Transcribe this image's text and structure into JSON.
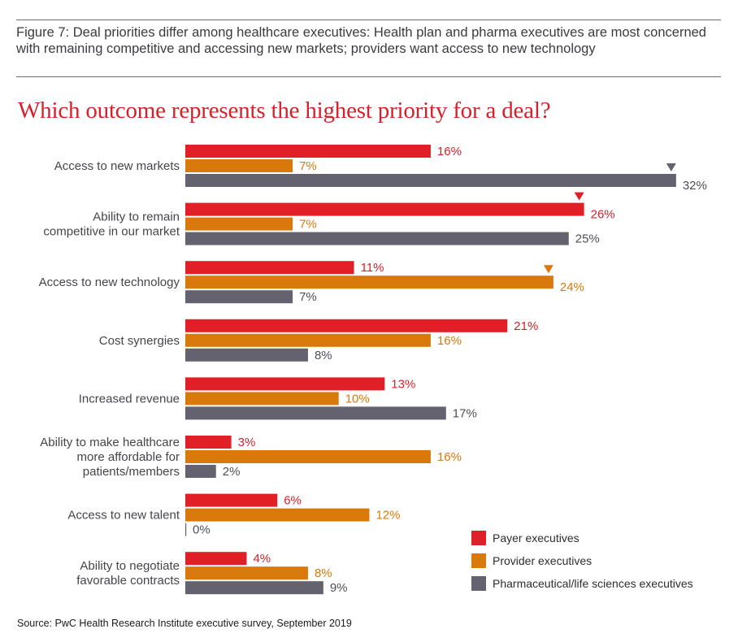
{
  "figure": {
    "caption": "Figure 7: Deal priorities differ among healthcare executives: Health plan and pharma executives are most concerned with remaining competitive and accessing new markets; providers want access to new technology",
    "source": "Source: PwC Health Research Institute executive survey, September 2019"
  },
  "colors": {
    "payer": "#e01f26",
    "provider": "#d9790c",
    "pharma": "#64626e",
    "payer_text": "#d6212a",
    "provider_text": "#d9790c",
    "pharma_text": "#4f4e57"
  },
  "chart_data": {
    "type": "bar",
    "orientation": "horizontal",
    "title": "Which outcome represents the highest priority for a deal?",
    "xlabel": "",
    "ylabel": "",
    "unit": "%",
    "xlim": [
      0,
      32
    ],
    "grid": false,
    "legend_position": "bottom-right",
    "categories": [
      [
        "Access to new markets"
      ],
      [
        "Ability to remain",
        "competitive in our market"
      ],
      [
        "Access to new technology"
      ],
      [
        "Cost synergies"
      ],
      [
        "Increased revenue"
      ],
      [
        "Ability to make healthcare",
        "more affordable for",
        "patients/members"
      ],
      [
        "Access to new talent"
      ],
      [
        "Ability to negotiate",
        "favorable contracts"
      ]
    ],
    "series": [
      {
        "key": "payer",
        "name": "Payer executives",
        "values": [
          16,
          26,
          11,
          21,
          13,
          3,
          6,
          4
        ]
      },
      {
        "key": "provider",
        "name": "Provider executives",
        "values": [
          7,
          7,
          24,
          16,
          10,
          16,
          12,
          8
        ]
      },
      {
        "key": "pharma",
        "name": "Pharmaceutical/life sciences executives",
        "values": [
          32,
          25,
          7,
          8,
          17,
          2,
          0,
          9
        ]
      }
    ],
    "highlights": [
      {
        "series": "pharma",
        "category_index": 0,
        "marker": "down-triangle"
      },
      {
        "series": "payer",
        "category_index": 1,
        "marker": "down-triangle"
      },
      {
        "series": "provider",
        "category_index": 2,
        "marker": "down-triangle"
      }
    ]
  }
}
